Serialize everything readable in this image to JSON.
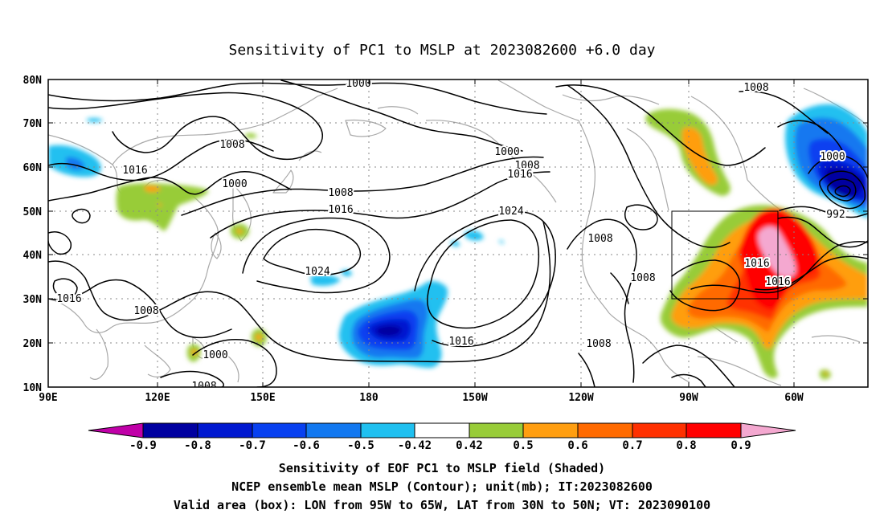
{
  "title": "Sensitivity of PC1 to MSLP at 2023082600 +6.0 day",
  "axes": {
    "lat_labels": [
      "80N",
      "70N",
      "60N",
      "50N",
      "40N",
      "30N",
      "20N",
      "10N"
    ],
    "lon_labels": [
      "90E",
      "120E",
      "150E",
      "180",
      "150W",
      "120W",
      "90W",
      "60W"
    ]
  },
  "contour_labels": [
    "1000",
    "1008",
    "1016",
    "1008",
    "1000",
    "1000",
    "1008",
    "1016",
    "1024",
    "1016",
    "1000",
    "1008",
    "1016",
    "1024",
    "1016",
    "1008",
    "1008",
    "1008",
    "1008",
    "1000",
    "992",
    "1016",
    "1016",
    "1008",
    "1000",
    "1008"
  ],
  "colorbar": {
    "labels": [
      "-0.9",
      "-0.8",
      "-0.7",
      "-0.6",
      "-0.5",
      "-0.42",
      "0.42",
      "0.5",
      "0.6",
      "0.7",
      "0.8",
      "0.9"
    ],
    "colors": [
      "#c000a8",
      "#0000a0",
      "#0018d0",
      "#0840f0",
      "#1278f0",
      "#20c0f0",
      "#ffffff",
      "#98cc38",
      "#ff9e10",
      "#ff6a00",
      "#ff3000",
      "#ff0000",
      "#f4a8d0"
    ]
  },
  "captions": [
    "Sensitivity of EOF PC1 to MSLP field (Shaded)",
    "NCEP ensemble mean MSLP (Contour); unit(mb); IT:2023082600",
    "Valid area (box): LON from 95W to 65W, LAT from 30N to 50N; VT: 2023090100"
  ]
}
